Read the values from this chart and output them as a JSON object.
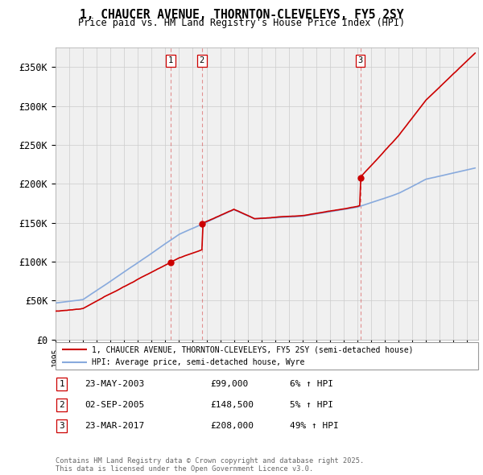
{
  "title": "1, CHAUCER AVENUE, THORNTON-CLEVELEYS, FY5 2SY",
  "subtitle": "Price paid vs. HM Land Registry's House Price Index (HPI)",
  "ylabel_ticks": [
    "£0",
    "£50K",
    "£100K",
    "£150K",
    "£200K",
    "£250K",
    "£300K",
    "£350K"
  ],
  "ylim": [
    0,
    375000
  ],
  "xlim_start": 1995.0,
  "xlim_end": 2025.8,
  "sale_line_color": "#cc0000",
  "hpi_line_color": "#88aadd",
  "sale_dot_color": "#cc0000",
  "vline_color": "#cc0000",
  "vline_alpha": 0.4,
  "sale_label": "1, CHAUCER AVENUE, THORNTON-CLEVELEYS, FY5 2SY (semi-detached house)",
  "hpi_label": "HPI: Average price, semi-detached house, Wyre",
  "transactions": [
    {
      "num": 1,
      "date_str": "23-MAY-2003",
      "date_x": 2003.38,
      "price": 99000,
      "pct": "6%",
      "arrow": "↑"
    },
    {
      "num": 2,
      "date_str": "02-SEP-2005",
      "date_x": 2005.67,
      "price": 148500,
      "pct": "5%",
      "arrow": "↑"
    },
    {
      "num": 3,
      "date_str": "23-MAR-2017",
      "date_x": 2017.22,
      "price": 208000,
      "pct": "49%",
      "arrow": "↑"
    }
  ],
  "footer_text": "Contains HM Land Registry data © Crown copyright and database right 2025.\nThis data is licensed under the Open Government Licence v3.0.",
  "bg_color": "#f0f0f0",
  "grid_color": "#cccccc",
  "sale_linewidth": 1.2,
  "hpi_linewidth": 1.2
}
